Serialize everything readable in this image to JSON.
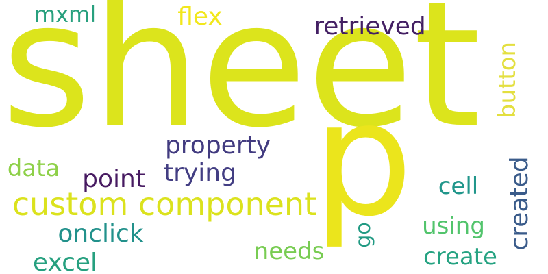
{
  "words": [
    {
      "text": "sheet",
      "color": "#dce41c"
    },
    {
      "text": "p",
      "color": "#ebe51c"
    },
    {
      "text": "custom component",
      "color": "#dbe21d"
    },
    {
      "text": "retrieved",
      "color": "#431f63"
    },
    {
      "text": "flex",
      "color": "#f2e71c"
    },
    {
      "text": "mxml",
      "color": "#28a07e"
    },
    {
      "text": "button",
      "color": "#e3df3f"
    },
    {
      "text": "property",
      "color": "#423b80"
    },
    {
      "text": "trying",
      "color": "#433e83"
    },
    {
      "text": "point",
      "color": "#471a61"
    },
    {
      "text": "data",
      "color": "#8ed048"
    },
    {
      "text": "created",
      "color": "#3a5b8a"
    },
    {
      "text": "cell",
      "color": "#21968b"
    },
    {
      "text": "using",
      "color": "#52c46c"
    },
    {
      "text": "onclick",
      "color": "#22918b"
    },
    {
      "text": "go",
      "color": "#219a83"
    },
    {
      "text": "needs",
      "color": "#78cc52"
    },
    {
      "text": "create",
      "color": "#26a382"
    },
    {
      "text": "excel",
      "color": "#26a07f"
    }
  ]
}
